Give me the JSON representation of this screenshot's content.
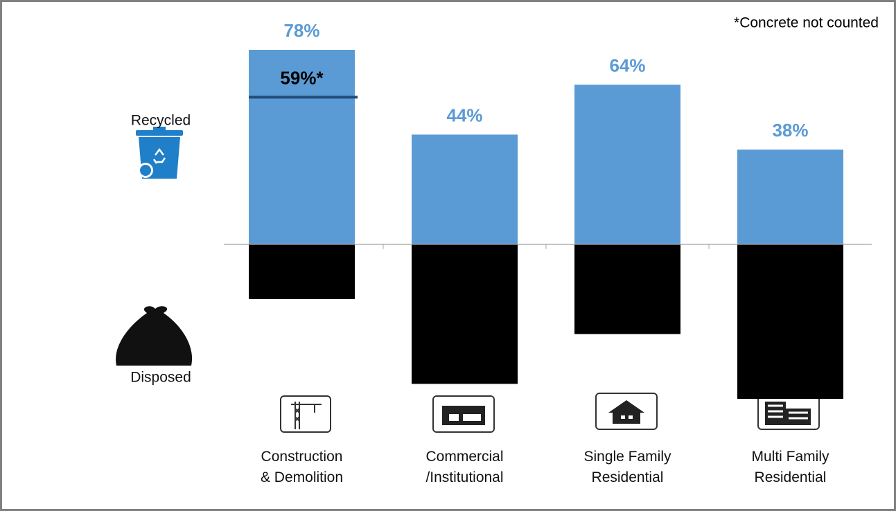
{
  "chart_data": {
    "type": "bar",
    "categories": [
      "Construction\n& Demolition",
      "Commercial\n/Institutional",
      "Single Family\nResidential",
      "Multi Family\nResidential"
    ],
    "series": [
      {
        "name": "Recycled",
        "color": "#5b9bd5",
        "values": [
          78,
          44,
          64,
          38
        ],
        "value_labels": [
          "78%",
          "44%",
          "64%",
          "38%"
        ]
      },
      {
        "name": "Disposed",
        "color": "#000000",
        "values": [
          -22,
          -56,
          -36,
          -62
        ]
      }
    ],
    "marker": {
      "category": 0,
      "value": 59,
      "label": "59%*",
      "color": "#1f4e79"
    },
    "note": "*Concrete not counted"
  }
}
